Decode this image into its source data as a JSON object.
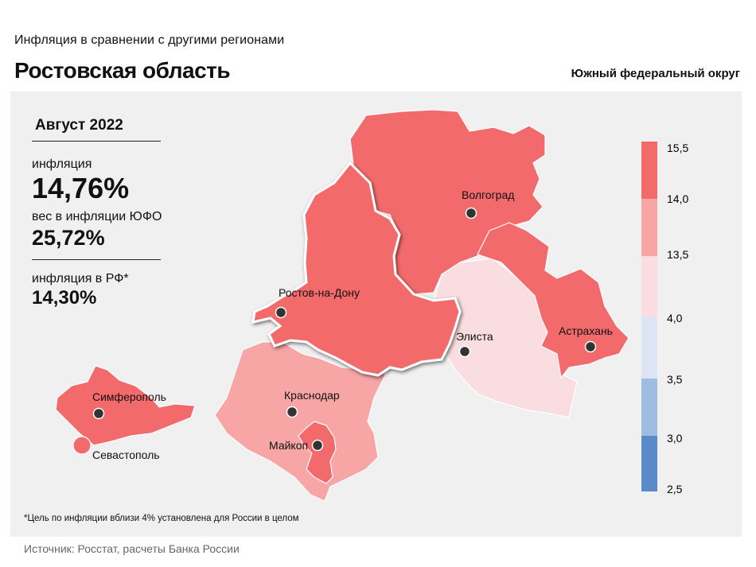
{
  "header": {
    "subtitle": "Инфляция в сравнении с другими регионами",
    "title": "Ростовская область",
    "district": "Южный федеральный округ"
  },
  "stats": {
    "period": "Август 2022",
    "inflation_label": "инфляция",
    "inflation_value": "14,76%",
    "weight_label": "вес в инфляции ЮФО",
    "weight_value": "25,72%",
    "rf_label": "инфляция в РФ*",
    "rf_value": "14,30%"
  },
  "legend": {
    "ticks": [
      "15,5",
      "14,0",
      "13,5",
      "4,0",
      "3,5",
      "3,0",
      "2,5"
    ],
    "colors": [
      "#f26a6b",
      "#f8a5a6",
      "#f9dde0",
      "#dde4f3",
      "#9ebde0",
      "#5b8ac8"
    ]
  },
  "map": {
    "regions": [
      {
        "name": "Волгоградская область",
        "color": "#f9dde0"
      },
      {
        "name": "Ростовская область",
        "color": "#f26a6b"
      },
      {
        "name": "Республика Калмыкия",
        "color": "#f8a5a6"
      },
      {
        "name": "Астраханская область",
        "color": "#f26a6b"
      },
      {
        "name": "Краснодарский край",
        "color": "#f9dde0"
      },
      {
        "name": "Республика Адыгея",
        "color": "#f26a6b"
      },
      {
        "name": "Республика Крым",
        "color": "#f26a6b"
      },
      {
        "name": "Севастополь",
        "color": "#f26a6b"
      }
    ],
    "cities": {
      "volgograd": "Волгоград",
      "rostov": "Ростов-на-Дону",
      "elista": "Элиста",
      "astrakhan": "Астрахань",
      "krasnodar": "Краснодар",
      "maykop": "Майкоп",
      "simferopol": "Симферополь",
      "sevastopol": "Севастополь"
    }
  },
  "footnote": "*Цель по инфляции вблизи 4% установлена для России в целом",
  "source": "Источник: Росстат, расчеты Банка России"
}
